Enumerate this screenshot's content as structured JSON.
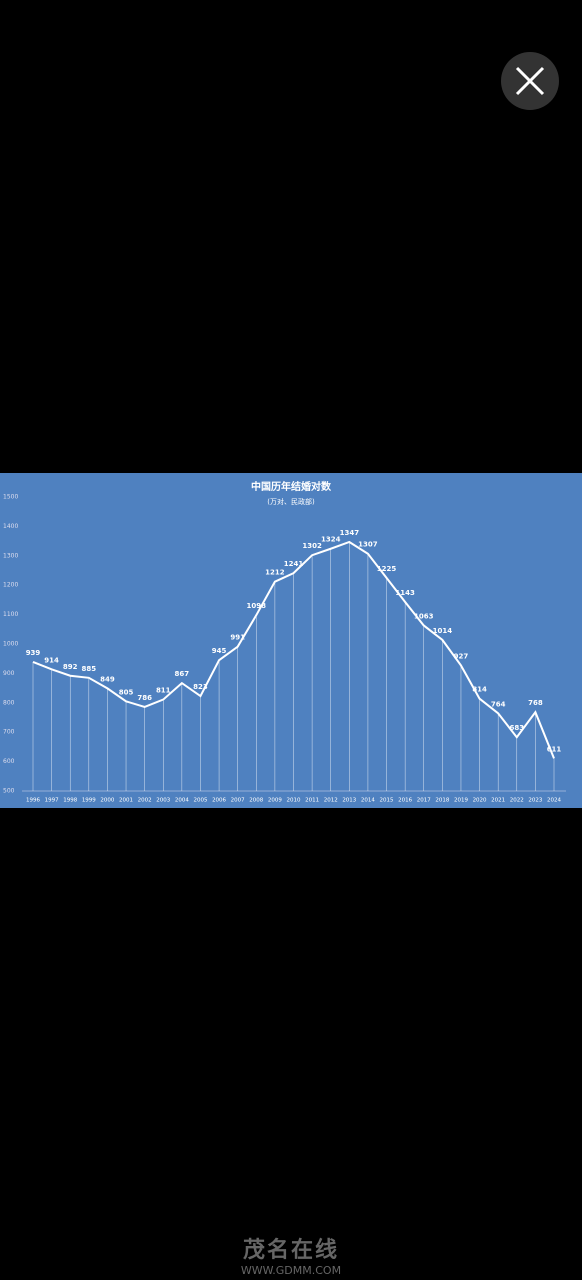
{
  "chart_data": {
    "type": "line",
    "title": "中国历年结婚对数",
    "subtitle": "(万对、民政部)",
    "categories": [
      "1996",
      "1997",
      "1998",
      "1999",
      "2000",
      "2001",
      "2002",
      "2003",
      "2004",
      "2005",
      "2006",
      "2007",
      "2008",
      "2009",
      "2010",
      "2011",
      "2012",
      "2013",
      "2014",
      "2015",
      "2016",
      "2017",
      "2018",
      "2019",
      "2020",
      "2021",
      "2022",
      "2023",
      "2024"
    ],
    "values": [
      939,
      914,
      892,
      885,
      849,
      805,
      786,
      811,
      867,
      823,
      945,
      991,
      1098,
      1212,
      1241,
      1302,
      1324,
      1347,
      1307,
      1225,
      1143,
      1063,
      1014,
      927,
      814,
      764,
      683,
      768,
      611
    ],
    "color": "#ffffff",
    "background": "#4f81c0",
    "ylim": [
      500,
      1500
    ],
    "yticks": [
      500,
      600,
      700,
      800,
      900,
      1000,
      1100,
      1200,
      1300,
      1400,
      1500
    ],
    "drop_lines": true
  },
  "watermark": {
    "name": "茂名在线",
    "url": "WWW.GDMM.COM"
  }
}
